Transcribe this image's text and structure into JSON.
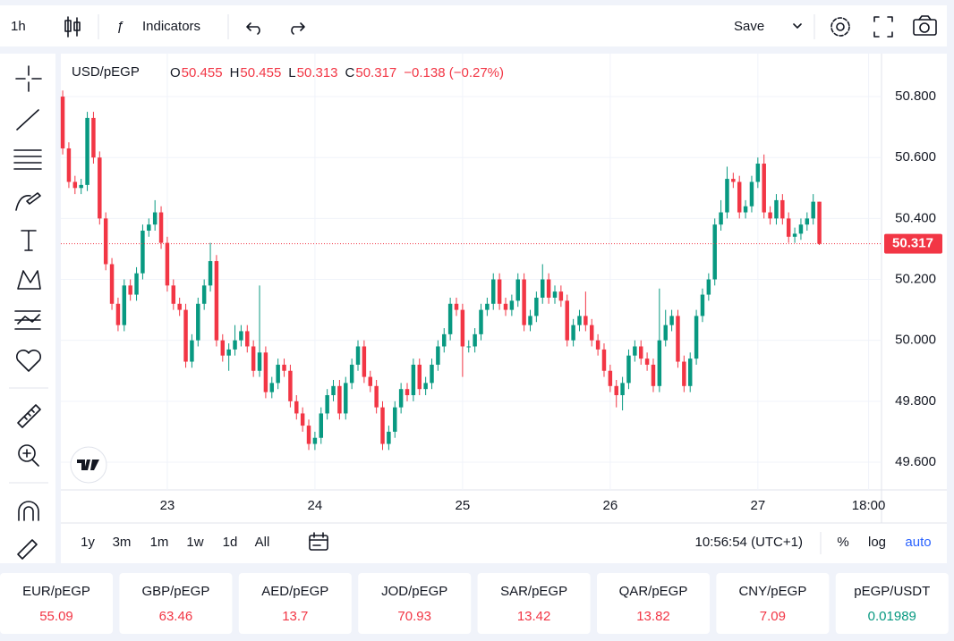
{
  "toolbar": {
    "interval": "1h",
    "indicators": "Indicators",
    "save": "Save"
  },
  "chart_data": {
    "type": "candlestick",
    "symbol": "USD/pEGP",
    "ohlc_labels": [
      "O",
      "H",
      "L",
      "C"
    ],
    "change": "−0.138 (−0.27%)",
    "up_color": "#089981",
    "down_color": "#f23645",
    "grid": true,
    "ylim": [
      49.509,
      50.941
    ],
    "yticks": [
      {
        "value": 49.6,
        "label": "49.600"
      },
      {
        "value": 49.8,
        "label": "49.800"
      },
      {
        "value": 50.0,
        "label": "50.000"
      },
      {
        "value": 50.2,
        "label": "50.200"
      },
      {
        "value": 50.4,
        "label": "50.400"
      },
      {
        "value": 50.6,
        "label": "50.600"
      },
      {
        "value": 50.8,
        "label": "50.800"
      }
    ],
    "xlim": [
      -0.3,
      133.1
    ],
    "xticks": [
      {
        "value": 17,
        "label": "23"
      },
      {
        "value": 41,
        "label": "24"
      },
      {
        "value": 65,
        "label": "25"
      },
      {
        "value": 89,
        "label": "26"
      },
      {
        "value": 113,
        "label": "27"
      },
      {
        "value": 131,
        "label": "18:00"
      }
    ],
    "candles": [
      [
        50.8,
        50.82,
        50.61,
        50.63
      ],
      [
        50.63,
        50.65,
        50.5,
        50.52
      ],
      [
        50.52,
        50.54,
        50.48,
        50.5
      ],
      [
        50.5,
        50.53,
        50.48,
        50.51
      ],
      [
        50.51,
        50.75,
        50.49,
        50.73
      ],
      [
        50.73,
        50.75,
        50.58,
        50.6
      ],
      [
        50.6,
        50.62,
        50.38,
        50.4
      ],
      [
        50.4,
        50.42,
        50.23,
        50.25
      ],
      [
        50.25,
        50.27,
        50.1,
        50.12
      ],
      [
        50.12,
        50.14,
        50.03,
        50.05
      ],
      [
        50.05,
        50.2,
        50.03,
        50.18
      ],
      [
        50.18,
        50.2,
        50.13,
        50.15
      ],
      [
        50.15,
        50.24,
        50.13,
        50.22
      ],
      [
        50.22,
        50.38,
        50.2,
        50.36
      ],
      [
        50.36,
        50.4,
        50.34,
        50.38
      ],
      [
        50.38,
        50.46,
        50.36,
        50.42
      ],
      [
        50.42,
        50.44,
        50.3,
        50.32
      ],
      [
        50.32,
        50.34,
        50.16,
        50.18
      ],
      [
        50.18,
        50.2,
        50.1,
        50.12
      ],
      [
        50.12,
        50.14,
        50.08,
        50.1
      ],
      [
        50.1,
        50.12,
        49.91,
        49.93
      ],
      [
        49.93,
        50.02,
        49.91,
        50
      ],
      [
        50,
        50.14,
        49.98,
        50.12
      ],
      [
        50.12,
        50.2,
        50.1,
        50.18
      ],
      [
        50.18,
        50.32,
        50.16,
        50.26
      ],
      [
        50.26,
        50.28,
        49.98,
        50
      ],
      [
        50,
        50.02,
        49.93,
        49.95
      ],
      [
        49.95,
        49.99,
        49.9,
        49.97
      ],
      [
        49.97,
        50.05,
        49.95,
        50
      ],
      [
        50,
        50.05,
        49.98,
        50.03
      ],
      [
        50.03,
        50.05,
        49.96,
        49.98
      ],
      [
        49.98,
        50,
        49.88,
        49.9
      ],
      [
        49.9,
        50.18,
        49.88,
        49.96
      ],
      [
        49.96,
        49.98,
        49.81,
        49.83
      ],
      [
        49.83,
        49.88,
        49.81,
        49.86
      ],
      [
        49.86,
        49.94,
        49.84,
        49.92
      ],
      [
        49.92,
        49.94,
        49.88,
        49.9
      ],
      [
        49.9,
        49.92,
        49.78,
        49.8
      ],
      [
        49.8,
        49.82,
        49.74,
        49.76
      ],
      [
        49.76,
        49.78,
        49.7,
        49.72
      ],
      [
        49.72,
        49.74,
        49.64,
        49.66
      ],
      [
        49.66,
        49.7,
        49.64,
        49.68
      ],
      [
        49.68,
        49.78,
        49.66,
        49.76
      ],
      [
        49.76,
        49.84,
        49.74,
        49.82
      ],
      [
        49.82,
        49.87,
        49.8,
        49.85
      ],
      [
        49.85,
        49.87,
        49.74,
        49.76
      ],
      [
        49.76,
        49.88,
        49.74,
        49.86
      ],
      [
        49.86,
        49.94,
        49.84,
        49.92
      ],
      [
        49.92,
        50,
        49.9,
        49.98
      ],
      [
        49.98,
        50,
        49.86,
        49.88
      ],
      [
        49.88,
        49.9,
        49.83,
        49.85
      ],
      [
        49.85,
        49.87,
        49.76,
        49.78
      ],
      [
        49.78,
        49.8,
        49.64,
        49.66
      ],
      [
        49.66,
        49.72,
        49.64,
        49.7
      ],
      [
        49.7,
        49.8,
        49.68,
        49.78
      ],
      [
        49.78,
        49.86,
        49.76,
        49.84
      ],
      [
        49.84,
        49.86,
        49.8,
        49.82
      ],
      [
        49.82,
        49.94,
        49.8,
        49.92
      ],
      [
        49.92,
        49.94,
        49.82,
        49.84
      ],
      [
        49.84,
        49.88,
        49.82,
        49.86
      ],
      [
        49.86,
        49.94,
        49.84,
        49.92
      ],
      [
        49.92,
        50,
        49.9,
        49.98
      ],
      [
        49.98,
        50.04,
        49.96,
        50.02
      ],
      [
        50.02,
        50.14,
        50,
        50.12
      ],
      [
        50.12,
        50.14,
        50.08,
        50.1
      ],
      [
        50.1,
        50.12,
        49.88,
        49.98
      ],
      [
        49.98,
        50,
        49.96,
        49.98
      ],
      [
        49.98,
        50.04,
        49.96,
        50.02
      ],
      [
        50.02,
        50.12,
        50,
        50.1
      ],
      [
        50.1,
        50.14,
        50.08,
        50.12
      ],
      [
        50.12,
        50.22,
        50.1,
        50.2
      ],
      [
        50.2,
        50.22,
        50.1,
        50.12
      ],
      [
        50.12,
        50.14,
        50.08,
        50.1
      ],
      [
        50.1,
        50.15,
        50.08,
        50.13
      ],
      [
        50.13,
        50.22,
        50.11,
        50.2
      ],
      [
        50.2,
        50.22,
        50.03,
        50.05
      ],
      [
        50.05,
        50.1,
        50.03,
        50.08
      ],
      [
        50.08,
        50.16,
        50.06,
        50.14
      ],
      [
        50.14,
        50.25,
        50.12,
        50.2
      ],
      [
        50.2,
        50.22,
        50.12,
        50.14
      ],
      [
        50.14,
        50.18,
        50.12,
        50.16
      ],
      [
        50.16,
        50.18,
        50.11,
        50.13
      ],
      [
        50.13,
        50.15,
        49.98,
        50
      ],
      [
        50,
        50.07,
        49.98,
        50.05
      ],
      [
        50.05,
        50.1,
        50.03,
        50.08
      ],
      [
        50.08,
        50.16,
        50.03,
        50.05
      ],
      [
        50.05,
        50.07,
        49.98,
        50
      ],
      [
        50,
        50.02,
        49.95,
        49.97
      ],
      [
        49.97,
        49.99,
        49.88,
        49.9
      ],
      [
        49.9,
        49.92,
        49.83,
        49.85
      ],
      [
        49.85,
        49.87,
        49.78,
        49.82
      ],
      [
        49.82,
        49.88,
        49.77,
        49.86
      ],
      [
        49.86,
        49.97,
        49.84,
        49.95
      ],
      [
        49.95,
        50,
        49.93,
        49.98
      ],
      [
        49.98,
        50,
        49.92,
        49.94
      ],
      [
        49.94,
        49.96,
        49.9,
        49.92
      ],
      [
        49.92,
        49.94,
        49.83,
        49.85
      ],
      [
        49.85,
        50.17,
        49.83,
        50
      ],
      [
        50,
        50.1,
        49.98,
        50.05
      ],
      [
        50.05,
        50.1,
        50.03,
        50.08
      ],
      [
        50.08,
        50.1,
        49.91,
        49.93
      ],
      [
        49.93,
        49.95,
        49.83,
        49.85
      ],
      [
        49.85,
        49.96,
        49.83,
        49.94
      ],
      [
        49.94,
        50.1,
        49.92,
        50.08
      ],
      [
        50.08,
        50.17,
        50.06,
        50.15
      ],
      [
        50.15,
        50.22,
        50.13,
        50.2
      ],
      [
        50.2,
        50.4,
        50.18,
        50.38
      ],
      [
        50.38,
        50.46,
        50.36,
        50.42
      ],
      [
        50.42,
        50.57,
        50.4,
        50.53
      ],
      [
        50.53,
        50.55,
        50.5,
        50.52
      ],
      [
        50.52,
        50.54,
        50.4,
        50.42
      ],
      [
        50.42,
        50.46,
        50.4,
        50.44
      ],
      [
        50.44,
        50.54,
        50.42,
        50.52
      ],
      [
        50.52,
        50.6,
        50.5,
        50.58
      ],
      [
        50.58,
        50.61,
        50.4,
        50.42
      ],
      [
        50.42,
        50.44,
        50.38,
        50.4
      ],
      [
        50.4,
        50.48,
        50.38,
        50.46
      ],
      [
        50.46,
        50.48,
        50.38,
        50.4
      ],
      [
        50.4,
        50.42,
        50.32,
        50.34
      ],
      [
        50.34,
        50.37,
        50.32,
        50.35
      ],
      [
        50.35,
        50.4,
        50.33,
        50.38
      ],
      [
        50.38,
        50.42,
        50.36,
        50.4
      ],
      [
        50.4,
        50.48,
        50.38,
        50.455
      ],
      [
        50.455,
        50.455,
        50.313,
        50.317
      ]
    ]
  },
  "bottom_bar": {
    "ranges": [
      "1y",
      "3m",
      "1m",
      "1w",
      "1d",
      "All"
    ],
    "clock": "10:56:54 (UTC+1)",
    "percent": "%",
    "log": "log",
    "auto": "auto"
  },
  "tickers": [
    {
      "name": "EUR/pEGP",
      "value": "55.09",
      "color": "#f23645"
    },
    {
      "name": "GBP/pEGP",
      "value": "63.46",
      "color": "#f23645"
    },
    {
      "name": "AED/pEGP",
      "value": "13.7",
      "color": "#f23645"
    },
    {
      "name": "JOD/pEGP",
      "value": "70.93",
      "color": "#f23645"
    },
    {
      "name": "SAR/pEGP",
      "value": "13.42",
      "color": "#f23645"
    },
    {
      "name": "QAR/pEGP",
      "value": "13.82",
      "color": "#f23645"
    },
    {
      "name": "CNY/pEGP",
      "value": "7.09",
      "color": "#f23645"
    },
    {
      "name": "pEGP/USDT",
      "value": "0.01989",
      "color": "#089981"
    }
  ]
}
